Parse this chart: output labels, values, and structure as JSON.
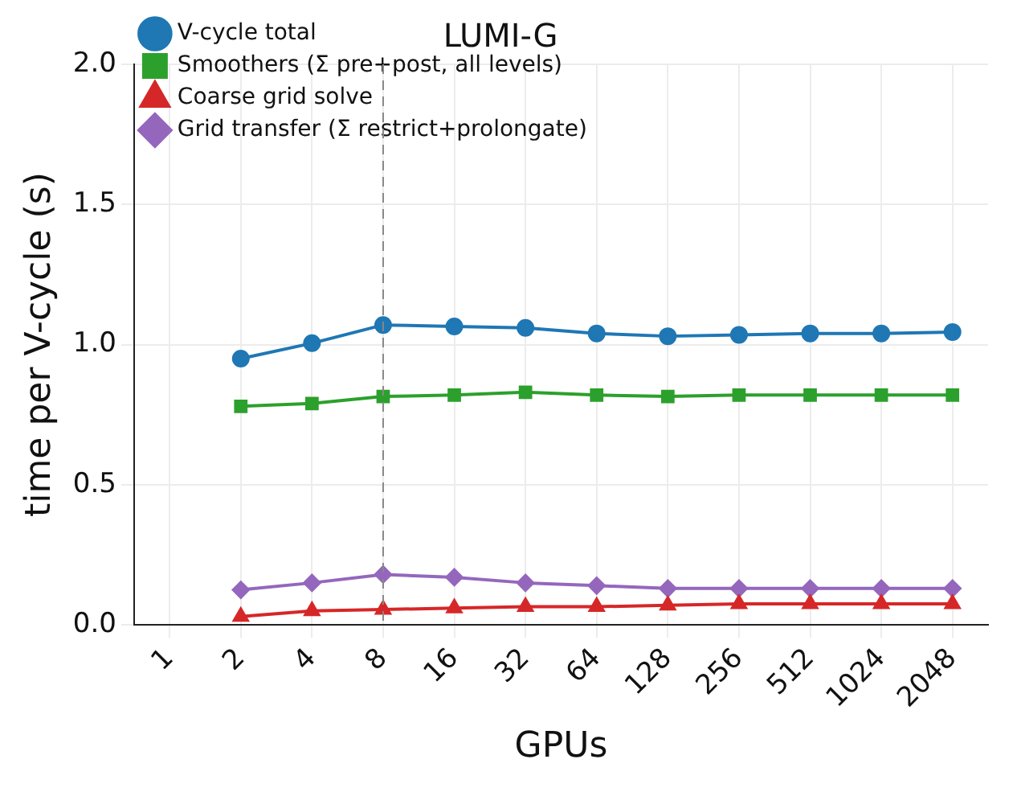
{
  "chart_data": {
    "type": "line",
    "title": "LUMI-G",
    "xlabel": "GPUs",
    "ylabel": "time per V-cycle (s)",
    "categories": [
      "1",
      "2",
      "4",
      "8",
      "16",
      "32",
      "64",
      "128",
      "256",
      "512",
      "1024",
      "2048"
    ],
    "series": [
      {
        "name": "V-cycle total",
        "color": "#1f77b4",
        "marker": "circle",
        "values": [
          null,
          0.95,
          1.005,
          1.07,
          1.065,
          1.06,
          1.04,
          1.03,
          1.035,
          1.04,
          1.04,
          1.045
        ]
      },
      {
        "name": "Smoothers (Σ pre+post, all levels)",
        "color": "#2ca02c",
        "marker": "square",
        "values": [
          null,
          0.78,
          0.79,
          0.815,
          0.82,
          0.83,
          0.82,
          0.815,
          0.82,
          0.82,
          0.82,
          0.82
        ]
      },
      {
        "name": "Coarse grid solve",
        "color": "#d62728",
        "marker": "triangle",
        "values": [
          null,
          0.03,
          0.05,
          0.055,
          0.06,
          0.065,
          0.065,
          0.07,
          0.075,
          0.075,
          0.075,
          0.075
        ]
      },
      {
        "name": "Grid transfer (Σ restrict+prolongate)",
        "color": "#9467bd",
        "marker": "diamond",
        "values": [
          null,
          0.125,
          0.15,
          0.18,
          0.17,
          0.15,
          0.14,
          0.13,
          0.13,
          0.13,
          0.13,
          0.13
        ]
      }
    ],
    "ylim": [
      0,
      2.0
    ],
    "yticks": [
      {
        "value": 0,
        "label": "0.0"
      },
      {
        "value": 0.5,
        "label": "0.5"
      },
      {
        "value": 1,
        "label": "1.0"
      },
      {
        "value": 1.5,
        "label": "1.5"
      },
      {
        "value": 2,
        "label": "2.0"
      }
    ],
    "ref_lines": [
      {
        "axis": "x",
        "value": "8",
        "color": "#888888",
        "line_style": "dashed"
      }
    ],
    "grid": true,
    "legend": "top left",
    "line_style": "solid"
  }
}
